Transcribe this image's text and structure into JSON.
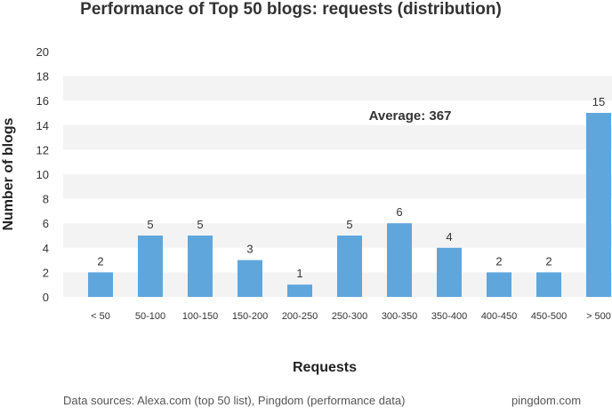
{
  "chart_data": {
    "type": "bar",
    "title": "Performance of Top 50 blogs: requests (distribution)",
    "xlabel": "Requests",
    "ylabel": "Number of blogs",
    "categories": [
      "< 50",
      "50-100",
      "100-150",
      "150-200",
      "200-250",
      "250-300",
      "300-350",
      "350-400",
      "400-450",
      "450-500",
      "> 500"
    ],
    "values": [
      2,
      5,
      5,
      3,
      1,
      5,
      6,
      4,
      2,
      2,
      15
    ],
    "ylim": [
      0,
      20
    ],
    "yticks": [
      0,
      2,
      4,
      6,
      8,
      10,
      12,
      14,
      16,
      18,
      20
    ],
    "annotation": "Average: 367",
    "bar_color": "#5fa6dc",
    "band_color": "#f3f3f3",
    "grid": "alternating horizontal bands"
  },
  "footer": {
    "sources": "Data sources: Alexa.com (top 50 list), Pingdom (performance data)",
    "brand": "pingdom.com"
  }
}
